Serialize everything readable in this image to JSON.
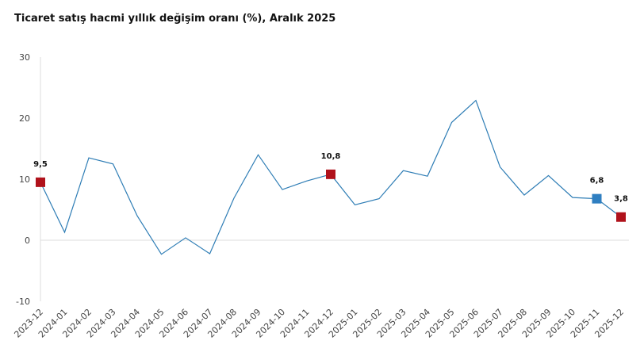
{
  "chart_data": {
    "type": "line",
    "title": "Ticaret satış hacmi yıllık değişim oranı (%), Aralık 2025",
    "categories": [
      "2023-12",
      "2024-01",
      "2024-02",
      "2024-03",
      "2024-04",
      "2024-05",
      "2024-06",
      "2024-07",
      "2024-08",
      "2024-09",
      "2024-10",
      "2024-11",
      "2024-12",
      "2025-01",
      "2025-02",
      "2025-03",
      "2025-04",
      "2025-05",
      "2025-06",
      "2025-07",
      "2025-08",
      "2025-09",
      "2025-10",
      "2025-11",
      "2025-12"
    ],
    "series": [
      {
        "color": "#2e7db5",
        "values": [
          9.5,
          1.3,
          13.5,
          12.5,
          4.0,
          -2.3,
          0.4,
          -2.2,
          6.9,
          14.0,
          8.3,
          9.7,
          10.8,
          5.8,
          6.8,
          11.4,
          10.5,
          19.3,
          22.9,
          12.0,
          7.4,
          10.6,
          7.0,
          6.8,
          3.8
        ],
        "value_labels": [
          "9,5",
          null,
          null,
          null,
          null,
          null,
          null,
          null,
          null,
          null,
          null,
          null,
          "10,8",
          null,
          null,
          null,
          null,
          null,
          null,
          null,
          null,
          null,
          null,
          "6,8",
          "3,8"
        ],
        "marker_colors": [
          "#b0121b",
          null,
          null,
          null,
          null,
          null,
          null,
          null,
          null,
          null,
          null,
          null,
          "#b0121b",
          null,
          null,
          null,
          null,
          null,
          null,
          null,
          null,
          null,
          null,
          "#2f7fc1",
          "#b0121b"
        ]
      }
    ],
    "ylim": [
      -10,
      30
    ],
    "yticks": [
      -10,
      0,
      10,
      20,
      30
    ],
    "grid": false
  }
}
